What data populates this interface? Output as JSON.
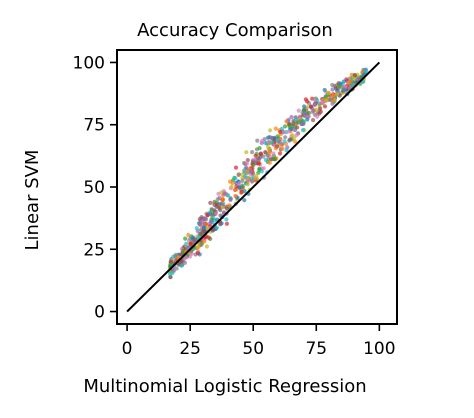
{
  "chart_data": {
    "type": "scatter",
    "title": "Accuracy Comparison",
    "xlabel": "Multinomial Logistic Regression",
    "ylabel": "Linear SVM",
    "xlim": [
      -4,
      107
    ],
    "ylim": [
      -5,
      105
    ],
    "xticks": [
      0,
      25,
      50,
      75,
      100
    ],
    "yticks": [
      0,
      25,
      50,
      75,
      100
    ],
    "grid": false,
    "point_count": 700,
    "point_colors": [
      "#1f77b4",
      "#ff7f0e",
      "#2ca02c",
      "#d62728",
      "#9467bd",
      "#8c564b",
      "#e377c2",
      "#7f7f7f",
      "#bcbd22",
      "#17becf"
    ],
    "point_opacity": 0.7,
    "cloud_band": [
      {
        "x": 17,
        "y_low": 13,
        "y_high": 22
      },
      {
        "x": 20,
        "y_low": 14,
        "y_high": 27
      },
      {
        "x": 25,
        "y_low": 17,
        "y_high": 34
      },
      {
        "x": 30,
        "y_low": 21,
        "y_high": 43
      },
      {
        "x": 35,
        "y_low": 27,
        "y_high": 51
      },
      {
        "x": 40,
        "y_low": 33,
        "y_high": 58
      },
      {
        "x": 45,
        "y_low": 39,
        "y_high": 64
      },
      {
        "x": 50,
        "y_low": 45,
        "y_high": 70
      },
      {
        "x": 55,
        "y_low": 52,
        "y_high": 75
      },
      {
        "x": 60,
        "y_low": 58,
        "y_high": 80
      },
      {
        "x": 65,
        "y_low": 64,
        "y_high": 84
      },
      {
        "x": 70,
        "y_low": 70,
        "y_high": 87
      },
      {
        "x": 75,
        "y_low": 75,
        "y_high": 90
      },
      {
        "x": 80,
        "y_low": 80,
        "y_high": 92
      },
      {
        "x": 85,
        "y_low": 84,
        "y_high": 95
      },
      {
        "x": 90,
        "y_low": 88,
        "y_high": 97
      },
      {
        "x": 95,
        "y_low": 92,
        "y_high": 99
      }
    ],
    "reference_line": {
      "from": [
        0,
        0
      ],
      "to": [
        100,
        100
      ],
      "color": "#000000"
    }
  }
}
